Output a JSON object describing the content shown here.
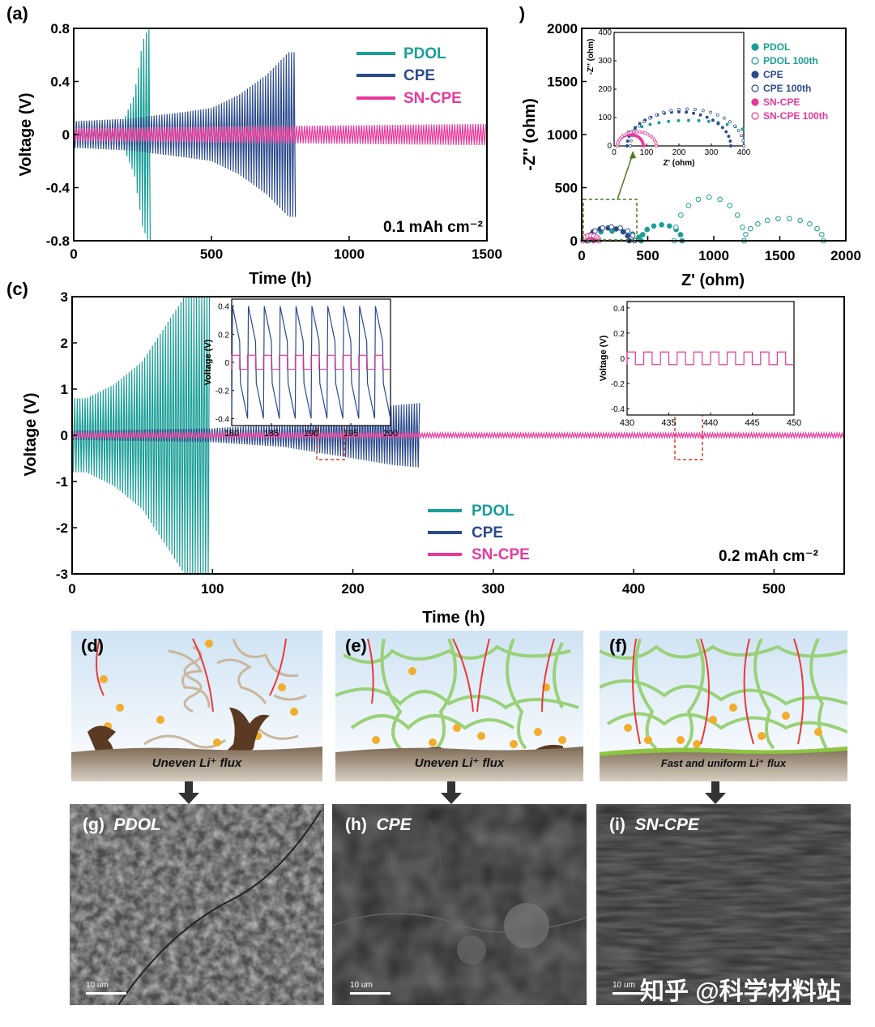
{
  "chart_data": [
    {
      "panel": "(a)",
      "type": "line",
      "xlabel": "Time (h)",
      "ylabel": "Voltage (V)",
      "xlim": [
        0,
        1500
      ],
      "ylim": [
        -0.8,
        0.8
      ],
      "xticks": [
        0,
        500,
        1000,
        1500
      ],
      "yticks": [
        -0.8,
        -0.4,
        0.0,
        0.4,
        0.8
      ],
      "annotation": "0.1 mAh cm⁻²",
      "legend": "top-right",
      "series": [
        {
          "name": "PDOL",
          "color": "#1a9e96",
          "x": [
            0,
            100,
            180,
            220,
            250,
            270,
            278
          ],
          "amp": [
            0.06,
            0.06,
            0.1,
            0.3,
            0.7,
            0.8,
            0.8
          ]
        },
        {
          "name": "CPE",
          "color": "#2b4a8c",
          "x": [
            0,
            200,
            400,
            500,
            600,
            700,
            780,
            805
          ],
          "amp": [
            0.1,
            0.12,
            0.17,
            0.2,
            0.3,
            0.45,
            0.62,
            0.62
          ]
        },
        {
          "name": "SN-CPE",
          "color": "#e8399a",
          "x": [
            0,
            500,
            1000,
            1500
          ],
          "amp": [
            0.05,
            0.06,
            0.07,
            0.08
          ]
        }
      ]
    },
    {
      "panel": "(b)",
      "type": "scatter",
      "xlabel": "Z' (ohm)",
      "ylabel": "-Z'' (ohm)",
      "xlim": [
        0,
        2000
      ],
      "ylim": [
        0,
        2000
      ],
      "xticks": [
        0,
        500,
        1000,
        1500,
        2000
      ],
      "yticks": [
        0,
        500,
        1000,
        1500,
        2000
      ],
      "legend": "top-right",
      "inset": {
        "xlabel": "Z' (ohm)",
        "ylabel": "-Z'' (ohm)",
        "xlim": [
          0,
          400
        ],
        "ylim": [
          0,
          400
        ],
        "xticks": [
          0,
          100,
          200,
          300,
          400
        ],
        "yticks": [
          0,
          100,
          200,
          300,
          400
        ]
      },
      "series": [
        {
          "name": "PDOL",
          "color": "#1a9e96",
          "filled": true,
          "arcs": [
            [
              10,
              450,
              90
            ],
            [
              450,
              760,
              150
            ]
          ]
        },
        {
          "name": "PDOL 100th",
          "color": "#1a9e96",
          "filled": false,
          "arcs": [
            [
              700,
              1230,
              410
            ],
            [
              1230,
              1830,
              210
            ]
          ]
        },
        {
          "name": "CPE",
          "color": "#2b4a8c",
          "filled": true,
          "arcs": [
            [
              40,
              360,
              120
            ]
          ]
        },
        {
          "name": "CPE 100th",
          "color": "#2b4a8c",
          "filled": false,
          "arcs": [
            [
              50,
              400,
              130
            ]
          ]
        },
        {
          "name": "SN-CPE",
          "color": "#e8399a",
          "filled": true,
          "arcs": [
            [
              10,
              90,
              40
            ]
          ]
        },
        {
          "name": "SN-CPE 100th",
          "color": "#e8399a",
          "filled": false,
          "arcs": [
            [
              10,
              130,
              50
            ]
          ]
        }
      ]
    },
    {
      "panel": "(c)",
      "type": "line",
      "xlabel": "Time (h)",
      "ylabel": "Voltage (V)",
      "xlim": [
        0,
        550
      ],
      "ylim": [
        -3,
        3
      ],
      "xticks": [
        0,
        100,
        200,
        300,
        400,
        500
      ],
      "yticks": [
        -3,
        -2,
        -1,
        0,
        1,
        2,
        3
      ],
      "annotation": "0.2 mAh cm⁻²",
      "legend": "bottom-center",
      "series": [
        {
          "name": "PDOL",
          "color": "#1a9e96",
          "x": [
            0,
            10,
            30,
            50,
            65,
            80,
            90,
            98
          ],
          "amp": [
            0.8,
            0.8,
            1.1,
            1.6,
            2.3,
            3.0,
            3.0,
            3.0
          ]
        },
        {
          "name": "CPE",
          "color": "#2b4a8c",
          "x": [
            0,
            100,
            150,
            200,
            230,
            248
          ],
          "amp": [
            0.1,
            0.15,
            0.25,
            0.5,
            0.65,
            0.7
          ]
        },
        {
          "name": "SN-CPE",
          "color": "#e8399a",
          "x": [
            0,
            550
          ],
          "amp": [
            0.05,
            0.05
          ]
        }
      ],
      "insets": [
        {
          "xlim": [
            180,
            200
          ],
          "ylim": [
            -0.45,
            0.45
          ],
          "ylabel": "Voltage (V)",
          "xticks": [
            180,
            185,
            190,
            195,
            200
          ],
          "yticks": [
            -0.4,
            -0.2,
            0.0,
            0.2,
            0.4
          ],
          "cpe_amp": 0.4,
          "sn_amp": 0.05,
          "cycles": 10
        },
        {
          "xlim": [
            430,
            450
          ],
          "ylim": [
            -0.45,
            0.45
          ],
          "ylabel": "Voltage (V)",
          "xticks": [
            430,
            435,
            440,
            445,
            450
          ],
          "yticks": [
            -0.4,
            -0.2,
            0.0,
            0.2,
            0.4
          ],
          "sn_amp": 0.05,
          "cycles": 10
        }
      ]
    }
  ],
  "schematics": [
    {
      "panel": "(d)",
      "caption": "Uneven Li⁺ flux"
    },
    {
      "panel": "(e)",
      "caption": "Uneven Li⁺ flux"
    },
    {
      "panel": "(f)",
      "caption": "Fast and uniform Li⁺ flux"
    }
  ],
  "sem_images": [
    {
      "panel": "(g)",
      "label": "PDOL",
      "scale": "10 um"
    },
    {
      "panel": "(h)",
      "label": "CPE",
      "scale": "10 um"
    },
    {
      "panel": "(i)",
      "label": "SN-CPE",
      "scale": "10 um"
    }
  ],
  "watermark": "知乎 @科学材料站"
}
